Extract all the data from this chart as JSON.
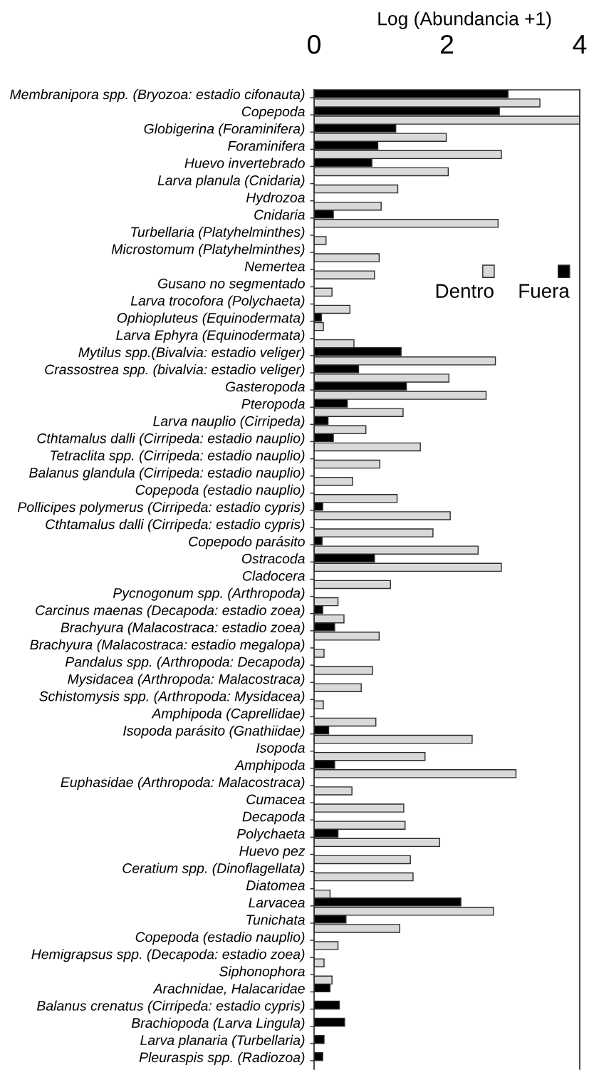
{
  "chart_data": {
    "type": "bar",
    "orientation": "horizontal",
    "xlabel": "Log (Abundancia +1)",
    "xlim": [
      0,
      4
    ],
    "xticks": [
      0,
      2,
      4
    ],
    "legend": "top right",
    "categories": [
      "Membranipora spp. (Bryozoa: estadio cifonauta)",
      "Copepoda",
      "Globigerina (Foraminifera)",
      "Foraminifera",
      "Huevo invertebrado",
      "Larva planula (Cnidaria)",
      "Hydrozoa",
      "Cnidaria",
      "Turbellaria (Platyhelminthes)",
      "Microstomum (Platyhelminthes)",
      "Nemertea",
      "Gusano no segmentado",
      "Larva trocofora (Polychaeta)",
      "Ophiopluteus (Equinodermata)",
      "Larva Ephyra (Equinodermata)",
      "Mytilus spp.(Bivalvia: estadio veliger)",
      "Crassostrea spp. (bivalvia: estadio veliger)",
      "Gasteropoda",
      "Pteropoda",
      "Larva nauplio (Cirripeda)",
      "Cthtamalus dalli (Cirripeda: estadio nauplio)",
      "Tetraclita spp. (Cirripeda: estadio nauplio)",
      "Balanus glandula (Cirripeda: estadio nauplio)",
      "Copepoda (estadio nauplio)",
      "Pollicipes polymerus (Cirripeda: estadio cypris)",
      "Cthtamalus dalli (Cirripeda: estadio cypris)",
      "Copepodo parásito",
      "Ostracoda",
      "Cladocera",
      "Pycnogonum spp. (Arthropoda)",
      "Carcinus maenas (Decapoda: estadio zoea)",
      "Brachyura (Malacostraca: estadio zoea)",
      "Brachyura (Malacostraca: estadio megalopa)",
      "Pandalus spp. (Arthropoda: Decapoda)",
      "Mysidacea (Arthropoda: Malacostraca)",
      "Schistomysis spp. (Arthropoda: Mysidacea)",
      "Amphipoda (Caprellidae)",
      "Isopoda parásito (Gnathiidae)",
      "Isopoda",
      "Amphipoda",
      "Euphasidae (Arthropoda: Malacostraca)",
      "Cumacea",
      "Decapoda",
      "Polychaeta",
      "Huevo pez",
      "Ceratium spp. (Dinoflagellata)",
      "Diatomea",
      "Larvacea",
      "Tunichata",
      "Copepoda (estadio nauplio)",
      "Hemigrapsus spp. (Decapoda: estadio zoea)",
      "Siphonophora",
      "Arachnidae, Halacaridae",
      "Balanus crenatus (Cirripeda: estadio cypris)",
      "Brachiopoda (Larva Lingula)",
      "Larva planaria (Turbellaria)",
      "Pleuraspis spp. (Radiozoa)"
    ],
    "series": [
      {
        "name": "Fuera",
        "color": "#000000",
        "values": [
          2.92,
          2.79,
          1.23,
          0.96,
          0.87,
          null,
          null,
          0.29,
          null,
          null,
          null,
          null,
          null,
          0.11,
          null,
          1.31,
          0.67,
          1.39,
          0.5,
          0.21,
          0.29,
          null,
          null,
          null,
          0.13,
          null,
          0.12,
          0.91,
          null,
          null,
          0.13,
          0.31,
          null,
          null,
          null,
          null,
          null,
          0.22,
          null,
          0.31,
          null,
          null,
          null,
          0.36,
          null,
          null,
          null,
          2.21,
          0.48,
          null,
          null,
          null,
          0.24,
          0.38,
          0.46,
          0.15,
          0.13
        ]
      },
      {
        "name": "Dentro",
        "color": "#d9d9d9",
        "values": [
          3.4,
          4.0,
          1.99,
          2.82,
          2.02,
          1.26,
          1.01,
          2.77,
          0.18,
          0.98,
          0.91,
          0.27,
          0.54,
          0.14,
          0.6,
          2.73,
          2.03,
          2.59,
          1.34,
          0.78,
          1.6,
          0.99,
          0.58,
          1.25,
          2.05,
          1.79,
          2.47,
          2.82,
          1.15,
          0.36,
          0.45,
          0.98,
          0.15,
          0.88,
          0.71,
          0.14,
          0.93,
          2.38,
          1.67,
          3.04,
          0.57,
          1.35,
          1.37,
          1.89,
          1.45,
          1.49,
          0.24,
          2.7,
          1.29,
          0.36,
          0.15,
          0.27,
          null,
          null,
          null,
          null,
          null
        ]
      }
    ]
  }
}
